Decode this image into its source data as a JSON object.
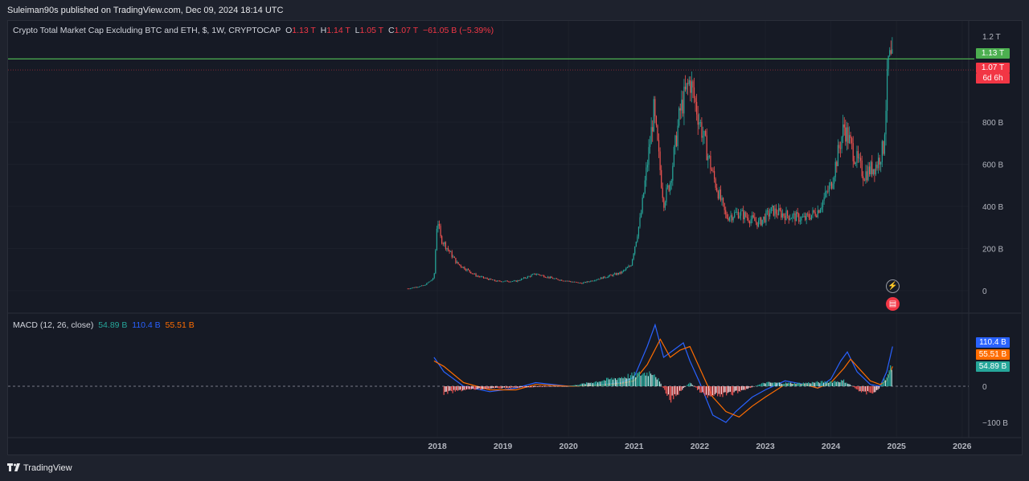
{
  "header": {
    "published": "Suleiman90s published on TradingView.com, Dec 09, 2024 18:14 UTC"
  },
  "legend": {
    "title": "Crypto Total Market Cap Excluding BTC and ETH, $, 1W, CRYPTOCAP",
    "o_label": "O",
    "o": "1.13 T",
    "h_label": "H",
    "h": "1.14 T",
    "l_label": "L",
    "l": "1.05 T",
    "c_label": "C",
    "c": "1.07 T",
    "change": "−61.05 B (−5.39%)"
  },
  "macd_legend": {
    "title": "MACD (12, 26, close)",
    "hist": "54.89 B",
    "macd": "110.4 B",
    "signal": "55.51 B"
  },
  "price_tags": {
    "high_line": "1.13 T",
    "last": "1.07 T",
    "countdown": "6d 6h"
  },
  "macd_tags": {
    "macd": "110.4 B",
    "signal": "55.51 B",
    "hist": "54.89 B"
  },
  "footer": {
    "brand": "TradingView"
  },
  "colors": {
    "bg": "#161a25",
    "up": "#26a69a",
    "down": "#ef5350",
    "macd": "#2962ff",
    "signal": "#ff6d00",
    "line": "#4caf50",
    "tag_red": "#f23645"
  },
  "chart_data": [
    {
      "type": "candlestick",
      "title": "Crypto Total Market Cap Excluding BTC and ETH, $, 1W, CRYPTOCAP",
      "y_unit": "USD (B)",
      "y_ticks": [
        "0",
        "200 B",
        "400 B",
        "600 B",
        "800 B",
        "1.2 T"
      ],
      "y_tick_values": [
        0,
        200,
        400,
        600,
        800,
        1200
      ],
      "x_ticks": [
        "2018",
        "2019",
        "2020",
        "2021",
        "2022",
        "2023",
        "2024",
        "2025",
        "2026"
      ],
      "x_tick_values": [
        2018,
        2019,
        2020,
        2021,
        2022,
        2023,
        2024,
        2025,
        2026
      ],
      "horizontal_line": 1130,
      "last_close": 1070,
      "series_approx": {
        "x": [
          2017.55,
          2017.8,
          2017.95,
          2018.0,
          2018.05,
          2018.3,
          2018.6,
          2018.9,
          2019.2,
          2019.5,
          2019.8,
          2020.2,
          2020.5,
          2020.8,
          2020.95,
          2021.1,
          2021.3,
          2021.45,
          2021.55,
          2021.7,
          2021.85,
          2022.0,
          2022.2,
          2022.4,
          2022.6,
          2022.9,
          2023.1,
          2023.3,
          2023.6,
          2023.8,
          2024.0,
          2024.2,
          2024.35,
          2024.5,
          2024.7,
          2024.8,
          2024.88,
          2024.94
        ],
        "close": [
          10,
          25,
          60,
          350,
          250,
          130,
          70,
          45,
          45,
          80,
          55,
          35,
          60,
          85,
          120,
          350,
          850,
          420,
          520,
          850,
          1000,
          800,
          550,
          350,
          370,
          320,
          380,
          360,
          340,
          380,
          500,
          780,
          650,
          550,
          600,
          680,
          1100,
          1070
        ]
      }
    },
    {
      "type": "line",
      "title": "MACD (12, 26, close)",
      "y_ticks": [
        "0",
        "−100 B"
      ],
      "y_tick_values": [
        0,
        -100
      ],
      "series": [
        {
          "name": "MACD",
          "x": [
            2017.95,
            2018.1,
            2018.4,
            2018.8,
            2019.2,
            2019.5,
            2020.0,
            2020.5,
            2020.8,
            2021.0,
            2021.2,
            2021.32,
            2021.45,
            2021.6,
            2021.75,
            2021.85,
            2022.0,
            2022.2,
            2022.4,
            2022.55,
            2022.8,
            2023.0,
            2023.3,
            2023.6,
            2023.8,
            2024.0,
            2024.15,
            2024.25,
            2024.4,
            2024.6,
            2024.75,
            2024.85,
            2024.94
          ],
          "values": [
            80,
            40,
            0,
            -15,
            -5,
            10,
            0,
            5,
            10,
            25,
            110,
            170,
            80,
            100,
            120,
            70,
            10,
            -80,
            -100,
            -70,
            -30,
            -10,
            15,
            5,
            -5,
            20,
            70,
            95,
            40,
            5,
            0,
            40,
            110
          ]
        },
        {
          "name": "Signal",
          "x": [
            2017.95,
            2018.1,
            2018.4,
            2018.8,
            2019.2,
            2019.5,
            2020.0,
            2020.5,
            2020.8,
            2021.0,
            2021.2,
            2021.4,
            2021.55,
            2021.7,
            2021.85,
            2022.0,
            2022.2,
            2022.4,
            2022.6,
            2022.8,
            2023.0,
            2023.3,
            2023.6,
            2023.8,
            2024.0,
            2024.2,
            2024.3,
            2024.45,
            2024.6,
            2024.75,
            2024.85,
            2024.94
          ],
          "values": [
            70,
            55,
            10,
            -10,
            -10,
            5,
            0,
            3,
            8,
            15,
            60,
            130,
            80,
            100,
            110,
            50,
            -30,
            -70,
            -85,
            -55,
            -30,
            5,
            5,
            -5,
            10,
            50,
            75,
            45,
            15,
            5,
            15,
            55
          ]
        },
        {
          "name": "Histogram",
          "x": [
            2018.1,
            2018.4,
            2019.0,
            2020.0,
            2021.3,
            2021.55,
            2021.85,
            2022.1,
            2022.5,
            2023.0,
            2023.5,
            2024.2,
            2024.5,
            2024.7,
            2024.94
          ],
          "values": [
            -20,
            -10,
            -5,
            0,
            40,
            -40,
            10,
            -30,
            -20,
            10,
            8,
            15,
            -20,
            -15,
            55
          ]
        }
      ]
    }
  ]
}
